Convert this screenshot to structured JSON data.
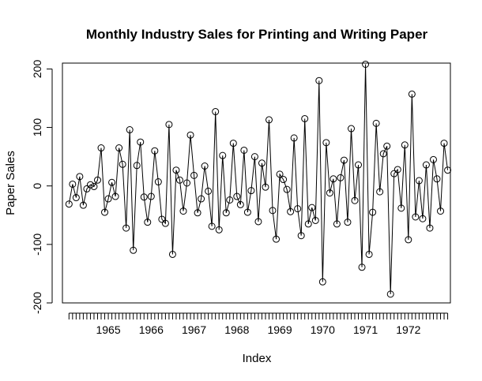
{
  "chart_data": {
    "type": "line",
    "title": "Monthly Industry Sales for Printing and Writing Paper",
    "xlabel": "Index",
    "ylabel": "Paper Sales",
    "x_start": 1964.0833,
    "x_step": 0.0833333,
    "xlim": [
      1963.93,
      1972.98
    ],
    "ylim": [
      -200,
      210
    ],
    "y_ticks": [
      -200,
      -100,
      0,
      100,
      200
    ],
    "y_tick_labels": [
      "-200",
      "-100",
      "0",
      "100",
      "200"
    ],
    "x_tick_labels": [
      {
        "value": 1965,
        "label": "1965"
      },
      {
        "value": 1966,
        "label": "1966"
      },
      {
        "value": 1967,
        "label": "1967"
      },
      {
        "value": 1968,
        "label": "1968"
      },
      {
        "value": 1969,
        "label": "1969"
      },
      {
        "value": 1970,
        "label": "1970"
      },
      {
        "value": 1971,
        "label": "1971"
      },
      {
        "value": 1972,
        "label": "1972"
      }
    ],
    "grid": false,
    "legend": false,
    "markers": "open-circle",
    "series": [
      {
        "values": [
          -31,
          3,
          -20,
          16,
          -33,
          -5,
          2,
          -1,
          10,
          65,
          -45,
          -22,
          6,
          -18,
          65,
          37,
          -72,
          96,
          -110,
          35,
          75,
          -19,
          -62,
          -18,
          60,
          7,
          -57,
          -64,
          105,
          -117,
          27,
          10,
          -43,
          5,
          87,
          18,
          -46,
          -22,
          34,
          -9,
          -69,
          127,
          -75,
          52,
          -46,
          -24,
          73,
          -18,
          -32,
          61,
          -45,
          -8,
          50,
          -61,
          39,
          -2,
          113,
          -42,
          -91,
          20,
          11,
          -6,
          -44,
          82,
          -39,
          -85,
          115,
          -65,
          -37,
          -59,
          180,
          -164,
          74,
          -12,
          12,
          -65,
          14,
          44,
          -62,
          98,
          -25,
          36,
          -139,
          208,
          -117,
          -45,
          107,
          -10,
          55,
          68,
          -185,
          21,
          28,
          -38,
          70,
          -92,
          157,
          -53,
          9,
          -56,
          36,
          -72,
          45,
          12,
          -43,
          73,
          27
        ]
      }
    ]
  }
}
